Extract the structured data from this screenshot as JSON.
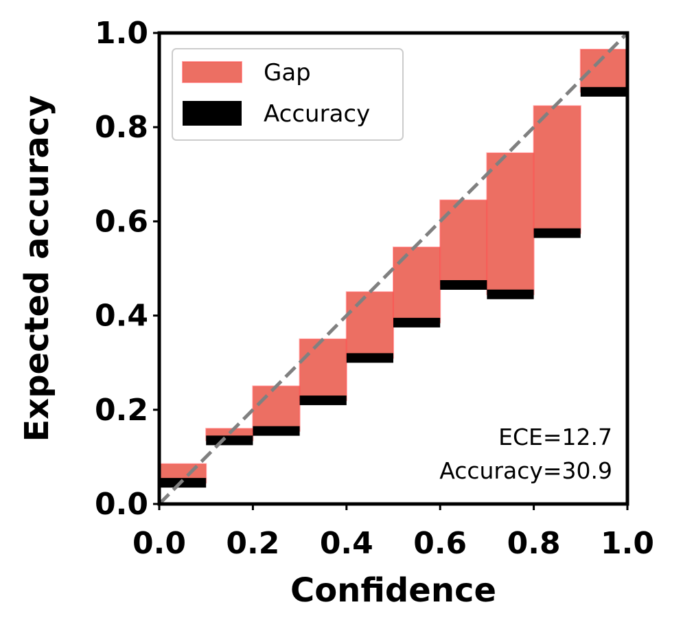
{
  "chart_data": {
    "type": "bar",
    "xlabel": "Confidence",
    "ylabel": "Expected accuracy",
    "xlim": [
      0.0,
      1.0
    ],
    "ylim": [
      0.0,
      1.0
    ],
    "x_ticks": [
      "0.0",
      "0.2",
      "0.4",
      "0.6",
      "0.8",
      "1.0"
    ],
    "y_ticks": [
      "0.0",
      "0.2",
      "0.4",
      "0.6",
      "0.8",
      "1.0"
    ],
    "grid": false,
    "legend_position": "top-left",
    "bin_width": 0.1,
    "bins": [
      0.0,
      0.1,
      0.2,
      0.3,
      0.4,
      0.5,
      0.6,
      0.7,
      0.8,
      0.9
    ],
    "series": [
      {
        "name": "Gap",
        "color": "#ec6f63",
        "low": [
          0.045,
          0.135,
          0.155,
          0.22,
          0.31,
          0.385,
          0.465,
          0.445,
          0.575,
          0.875
        ],
        "high": [
          0.085,
          0.16,
          0.25,
          0.35,
          0.45,
          0.545,
          0.645,
          0.745,
          0.845,
          0.965
        ]
      },
      {
        "name": "Accuracy",
        "color": "#000000",
        "values": [
          0.045,
          0.135,
          0.155,
          0.22,
          0.31,
          0.385,
          0.465,
          0.445,
          0.575,
          0.875
        ]
      }
    ],
    "diagonal": {
      "from": [
        0.0,
        0.0
      ],
      "to": [
        1.0,
        1.0
      ],
      "color": "#808080",
      "style": "dashed"
    },
    "annotations": [
      "ECE=12.7",
      "Accuracy=30.9"
    ]
  }
}
